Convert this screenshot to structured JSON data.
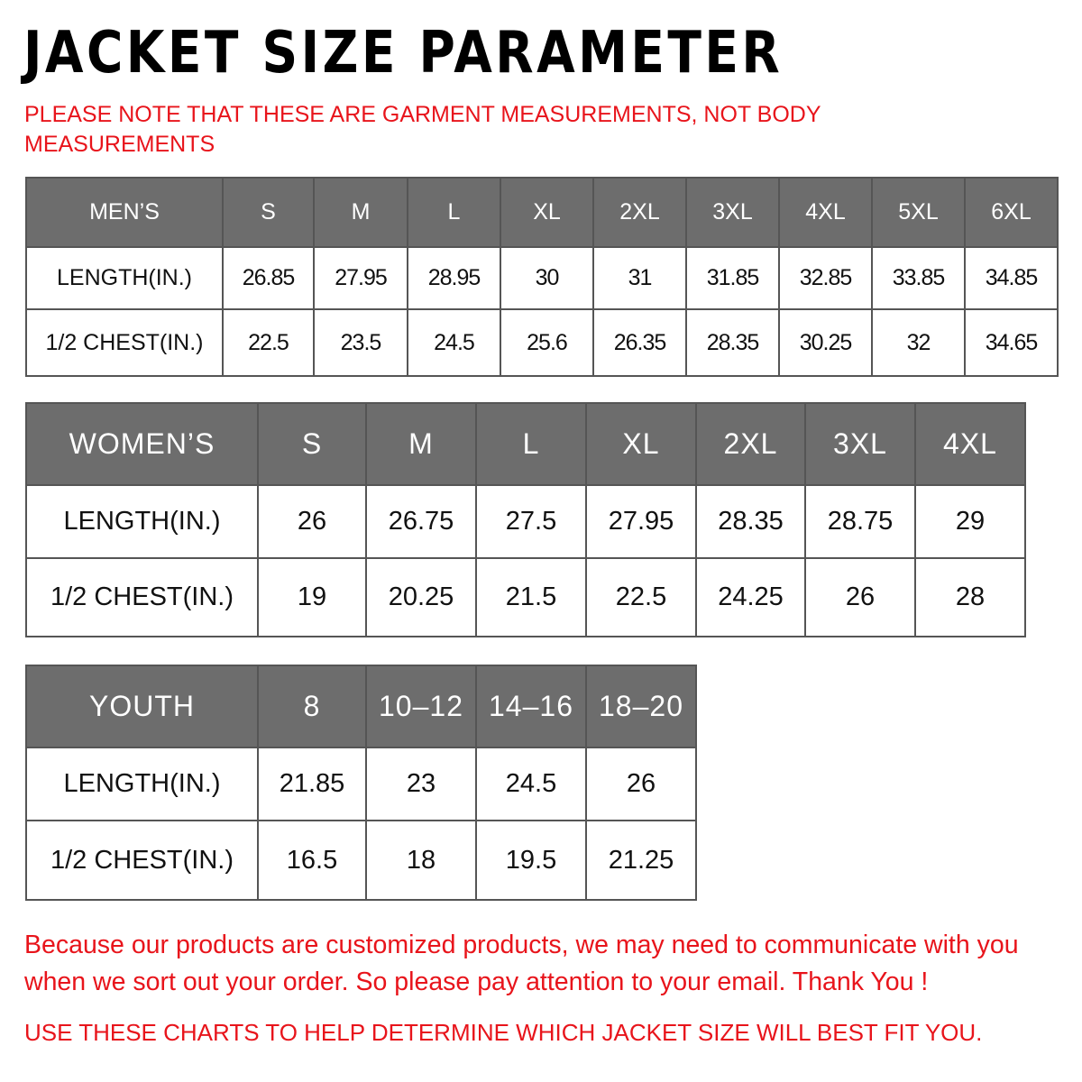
{
  "title": "JACKET SIZE PARAMETER",
  "note": "PLEASE NOTE THAT THESE ARE GARMENT MEASUREMENTS, NOT BODY MEASUREMENTS",
  "accent_color": "#e8141b",
  "header_bg": "#6d6d6d",
  "tables": [
    {
      "id": "men",
      "header": [
        "MEN’S",
        "S",
        "M",
        "L",
        "XL",
        "2XL",
        "3XL",
        "4XL",
        "5XL",
        "6XL"
      ],
      "rows": [
        [
          "LENGTH(IN.)",
          "26.85",
          "27.95",
          "28.95",
          "30",
          "31",
          "31.85",
          "32.85",
          "33.85",
          "34.85"
        ],
        [
          "1/2 CHEST(IN.)",
          "22.5",
          "23.5",
          "24.5",
          "25.6",
          "26.35",
          "28.35",
          "30.25",
          "32",
          "34.65"
        ]
      ]
    },
    {
      "id": "women",
      "header": [
        "WOMEN’S",
        "S",
        "M",
        "L",
        "XL",
        "2XL",
        "3XL",
        "4XL"
      ],
      "rows": [
        [
          "LENGTH(IN.)",
          "26",
          "26.75",
          "27.5",
          "27.95",
          "28.35",
          "28.75",
          "29"
        ],
        [
          "1/2 CHEST(IN.)",
          "19",
          "20.25",
          "21.5",
          "22.5",
          "24.25",
          "26",
          "28"
        ]
      ]
    },
    {
      "id": "youth",
      "header": [
        "YOUTH",
        "8",
        "10–12",
        "14–16",
        "18–20"
      ],
      "rows": [
        [
          "LENGTH(IN.)",
          "21.85",
          "23",
          "24.5",
          "26"
        ],
        [
          "1/2 CHEST(IN.)",
          "16.5",
          "18",
          "19.5",
          "21.25"
        ]
      ]
    }
  ],
  "footer": "Because our products are customized products, we may need to communicate with you when we sort out your order. So please pay attention to your email. Thank You !",
  "footer2": "USE THESE CHARTS TO HELP DETERMINE WHICH JACKET SIZE WILL BEST FIT YOU."
}
